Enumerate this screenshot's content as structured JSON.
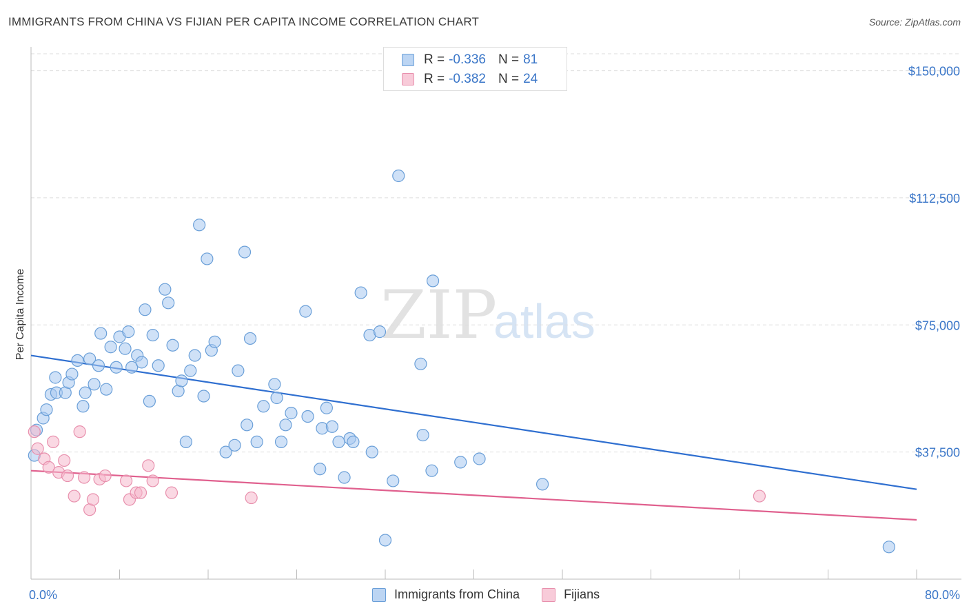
{
  "title": "IMMIGRANTS FROM CHINA VS FIJIAN PER CAPITA INCOME CORRELATION CHART",
  "source": "Source: ZipAtlas.com",
  "watermark": {
    "zip": "ZIP",
    "atlas": "atlas"
  },
  "legend": {
    "rows": [
      {
        "r_label": "R =",
        "r_value": "-0.336",
        "n_label": "N =",
        "n_value": "81"
      },
      {
        "r_label": "R =",
        "r_value": "-0.382",
        "n_label": "N =",
        "n_value": "24"
      }
    ]
  },
  "colors": {
    "china_fill": "#a8c8f0",
    "china_stroke": "#6a9fd8",
    "china_line": "#2f6fd0",
    "fiji_fill": "#f6b8cc",
    "fiji_stroke": "#e890ad",
    "fiji_line": "#e0608e",
    "tick": "#3a76c8",
    "grid": "#dddddd"
  },
  "chart_data": {
    "type": "scatter",
    "xlabel": "",
    "ylabel": "Per Capita Income",
    "xlim": [
      0,
      80
    ],
    "ylim": [
      0,
      155000
    ],
    "x_tick_labels": [
      "0.0%",
      "80.0%"
    ],
    "y_ticks": [
      37500,
      75000,
      112500,
      150000
    ],
    "y_tick_labels": [
      "$37,500",
      "$75,000",
      "$112,500",
      "$150,000"
    ],
    "grid": true,
    "legend_position": "top-center",
    "series": [
      {
        "name": "Immigrants from China",
        "trend": {
          "x": [
            0,
            80
          ],
          "y": [
            66000,
            26500
          ]
        },
        "points": [
          [
            0.3,
            36500
          ],
          [
            0.5,
            44000
          ],
          [
            1.1,
            47500
          ],
          [
            1.4,
            50000
          ],
          [
            1.8,
            54500
          ],
          [
            2.2,
            59500
          ],
          [
            2.3,
            55000
          ],
          [
            3.1,
            55000
          ],
          [
            3.4,
            58000
          ],
          [
            3.7,
            60500
          ],
          [
            4.2,
            64500
          ],
          [
            4.7,
            51000
          ],
          [
            4.9,
            55000
          ],
          [
            5.3,
            65000
          ],
          [
            5.7,
            57500
          ],
          [
            6.1,
            63000
          ],
          [
            6.3,
            72500
          ],
          [
            6.8,
            56000
          ],
          [
            7.2,
            68500
          ],
          [
            7.7,
            62500
          ],
          [
            8.0,
            71500
          ],
          [
            8.5,
            68000
          ],
          [
            8.8,
            73000
          ],
          [
            9.1,
            62500
          ],
          [
            9.6,
            66000
          ],
          [
            10.0,
            64000
          ],
          [
            10.3,
            79500
          ],
          [
            10.7,
            52500
          ],
          [
            11.0,
            72000
          ],
          [
            11.5,
            63000
          ],
          [
            12.1,
            85500
          ],
          [
            12.4,
            81500
          ],
          [
            12.8,
            69000
          ],
          [
            13.3,
            55500
          ],
          [
            13.6,
            58500
          ],
          [
            14.0,
            40500
          ],
          [
            14.4,
            61500
          ],
          [
            14.8,
            66000
          ],
          [
            15.2,
            104500
          ],
          [
            15.6,
            54000
          ],
          [
            15.9,
            94500
          ],
          [
            16.3,
            67500
          ],
          [
            16.6,
            70000
          ],
          [
            17.6,
            37500
          ],
          [
            18.4,
            39500
          ],
          [
            18.7,
            61500
          ],
          [
            19.3,
            96500
          ],
          [
            19.5,
            45500
          ],
          [
            19.8,
            71000
          ],
          [
            20.4,
            40500
          ],
          [
            21.0,
            51000
          ],
          [
            22.0,
            57500
          ],
          [
            22.2,
            53500
          ],
          [
            22.6,
            40500
          ],
          [
            23.0,
            45500
          ],
          [
            23.5,
            49000
          ],
          [
            24.8,
            79000
          ],
          [
            25.0,
            48000
          ],
          [
            26.1,
            32500
          ],
          [
            26.3,
            44500
          ],
          [
            26.7,
            50500
          ],
          [
            27.2,
            45000
          ],
          [
            27.8,
            40500
          ],
          [
            28.3,
            30000
          ],
          [
            28.8,
            41500
          ],
          [
            29.1,
            40500
          ],
          [
            29.8,
            84500
          ],
          [
            30.6,
            72000
          ],
          [
            30.8,
            37500
          ],
          [
            31.5,
            73000
          ],
          [
            32.0,
            11500
          ],
          [
            32.7,
            29000
          ],
          [
            33.2,
            119000
          ],
          [
            35.2,
            63500
          ],
          [
            35.4,
            42500
          ],
          [
            36.2,
            32000
          ],
          [
            36.3,
            88000
          ],
          [
            38.8,
            34500
          ],
          [
            40.5,
            35500
          ],
          [
            46.2,
            28000
          ],
          [
            77.5,
            9500
          ]
        ]
      },
      {
        "name": "Fijians",
        "trend": {
          "x": [
            0,
            80
          ],
          "y": [
            32000,
            17500
          ]
        },
        "points": [
          [
            0.3,
            43500
          ],
          [
            0.6,
            38500
          ],
          [
            1.2,
            35500
          ],
          [
            1.6,
            33000
          ],
          [
            2.0,
            40500
          ],
          [
            2.5,
            31500
          ],
          [
            3.0,
            35000
          ],
          [
            3.3,
            30500
          ],
          [
            3.9,
            24500
          ],
          [
            4.4,
            43500
          ],
          [
            4.8,
            30000
          ],
          [
            5.3,
            20500
          ],
          [
            5.6,
            23500
          ],
          [
            6.2,
            29500
          ],
          [
            6.7,
            30500
          ],
          [
            8.6,
            29000
          ],
          [
            8.9,
            23500
          ],
          [
            9.5,
            25500
          ],
          [
            9.9,
            25500
          ],
          [
            10.6,
            33500
          ],
          [
            11.0,
            29000
          ],
          [
            12.7,
            25500
          ],
          [
            19.9,
            24000
          ],
          [
            65.8,
            24500
          ]
        ]
      }
    ]
  }
}
